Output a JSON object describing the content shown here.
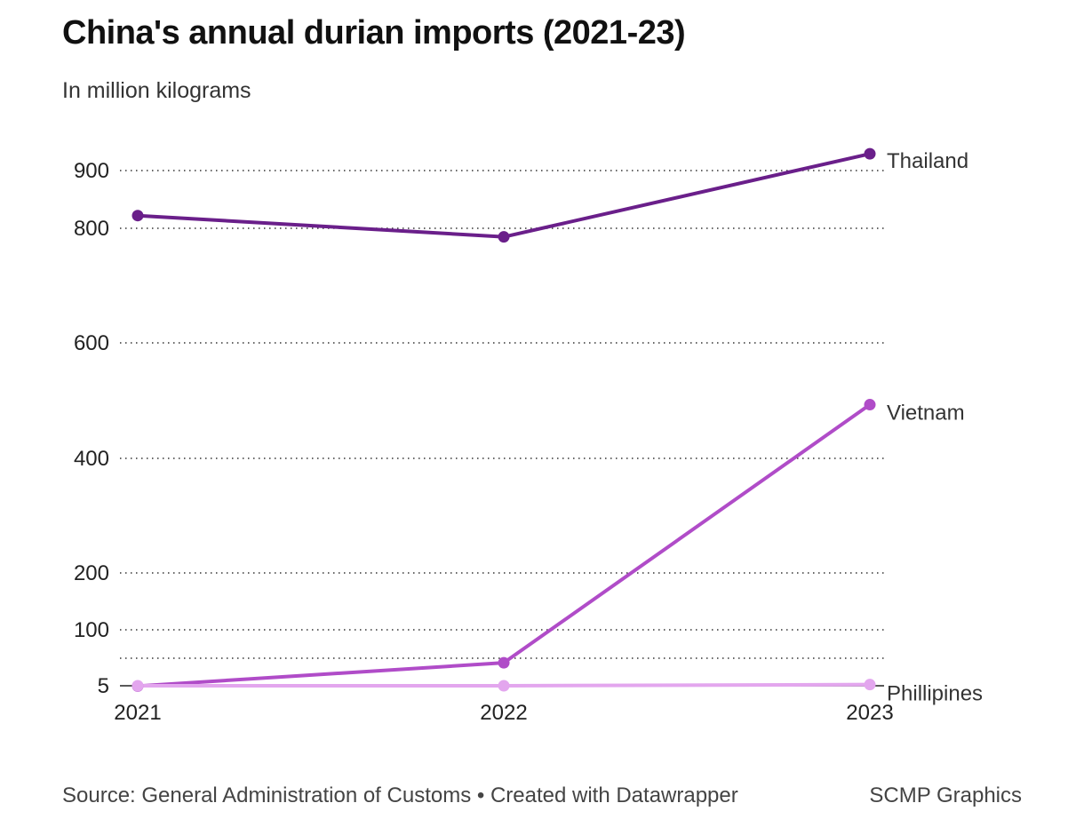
{
  "chart_data": {
    "type": "line",
    "title": "China's annual durian imports (2021-23)",
    "subtitle": "In million kilograms",
    "x": [
      "2021",
      "2022",
      "2023"
    ],
    "y_ticks": [
      5,
      100,
      200,
      400,
      600,
      800,
      900
    ],
    "y_tick_labels": [
      "5",
      "100",
      "200",
      "400",
      "600",
      "800",
      "900"
    ],
    "grid": true,
    "series": [
      {
        "name": "Thailand",
        "values": [
          822,
          785,
          929
        ],
        "color": "#6a1f8a"
      },
      {
        "name": "Vietnam",
        "values": [
          4,
          44,
          493
        ],
        "color": "#b04cc8"
      },
      {
        "name": "Phillipines",
        "values": [
          5,
          5,
          7
        ],
        "color": "#e3a6ee"
      }
    ],
    "source": "Source: General Administration of Customs • Created with Datawrapper",
    "credit": "SCMP Graphics"
  }
}
